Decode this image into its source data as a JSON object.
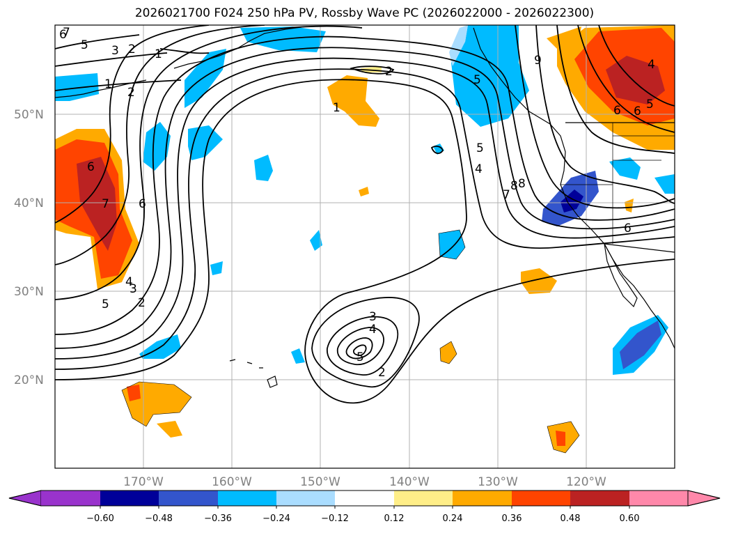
{
  "title": "2026021700 F024 250 hPa PV, Rossby Wave PC (2026022000 - 2026022300)",
  "map": {
    "lat_labels": [
      "50°N",
      "40°N",
      "30°N",
      "20°N"
    ],
    "lon_labels": [
      "170°W",
      "160°W",
      "150°W",
      "140°W",
      "130°W",
      "120°W"
    ],
    "gridlines": true,
    "projection": "equirectangular"
  },
  "colorbar": {
    "tick_labels": [
      "−0.60",
      "−0.48",
      "−0.36",
      "−0.24",
      "−0.12",
      "0.12",
      "0.24",
      "0.36",
      "0.48",
      "0.60"
    ],
    "colors": [
      "#9933cc",
      "#000099",
      "#3355cc",
      "#00bbff",
      "#aaddff",
      "#ffffff",
      "#ffee88",
      "#ffaa00",
      "#ff4400",
      "#bb2222",
      "#ff88aa"
    ],
    "extend": "both"
  },
  "contour_labels": [
    "6",
    "5",
    "3",
    "2",
    "1",
    "2",
    "1",
    "2",
    "1",
    "5",
    "4",
    "8",
    "7",
    "6",
    "6",
    "7",
    "6",
    "4",
    "5",
    "9",
    "6",
    "5",
    "4",
    "3",
    "2",
    "3",
    "4",
    "5",
    "2",
    "6",
    "8",
    "7",
    "5"
  ],
  "colors": {
    "contour": "#000000",
    "coast": "#000000",
    "grid": "#b0b0b0"
  }
}
